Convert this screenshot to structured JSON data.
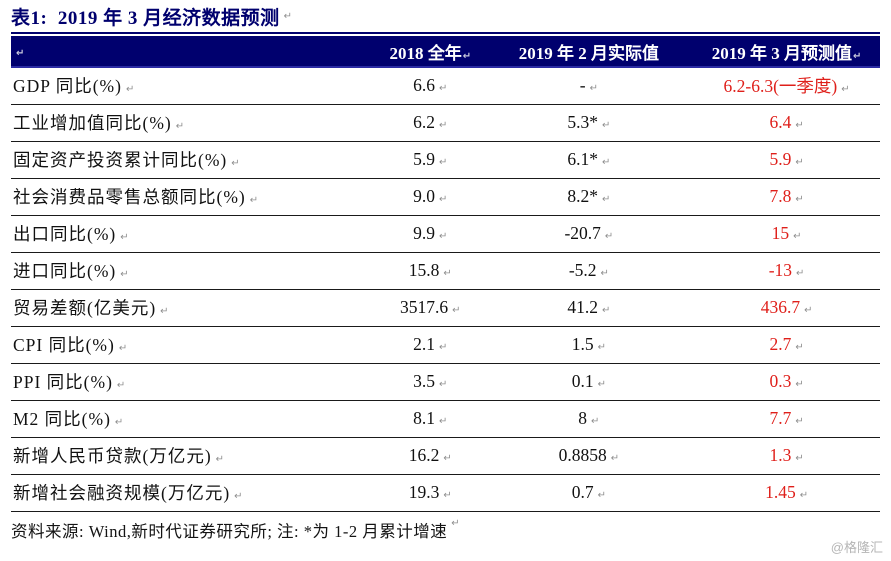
{
  "title": "表1:  2019 年 3 月经济数据预测",
  "paragraph_mark": "↵",
  "header": {
    "indicator": "",
    "y2018": "2018 全年",
    "feb2019": "2019 年 2 月实际值",
    "mar2019": "2019 年 3 月预测值"
  },
  "rows": [
    {
      "label": "GDP 同比(%)",
      "y2018": "6.6",
      "feb2019": "-",
      "mar2019": "6.2-6.3(一季度)"
    },
    {
      "label": "工业增加值同比(%)",
      "y2018": "6.2",
      "feb2019": "5.3*",
      "mar2019": "6.4"
    },
    {
      "label": "固定资产投资累计同比(%)",
      "y2018": "5.9",
      "feb2019": "6.1*",
      "mar2019": "5.9"
    },
    {
      "label": "社会消费品零售总额同比(%)",
      "y2018": "9.0",
      "feb2019": "8.2*",
      "mar2019": "7.8"
    },
    {
      "label": "出口同比(%)",
      "y2018": "9.9",
      "feb2019": "-20.7",
      "mar2019": "15"
    },
    {
      "label": "进口同比(%)",
      "y2018": "15.8",
      "feb2019": "-5.2",
      "mar2019": "-13"
    },
    {
      "label": "贸易差额(亿美元)",
      "y2018": "3517.6",
      "feb2019": "41.2",
      "mar2019": "436.7"
    },
    {
      "label": "CPI 同比(%)",
      "y2018": "2.1",
      "feb2019": "1.5",
      "mar2019": "2.7"
    },
    {
      "label": "PPI 同比(%)",
      "y2018": "3.5",
      "feb2019": "0.1",
      "mar2019": "0.3"
    },
    {
      "label": "M2 同比(%)",
      "y2018": "8.1",
      "feb2019": "8",
      "mar2019": "7.7"
    },
    {
      "label": "新增人民币贷款(万亿元)",
      "y2018": "16.2",
      "feb2019": "0.8858",
      "mar2019": "1.3"
    },
    {
      "label": "新增社会融资规模(万亿元)",
      "y2018": "19.3",
      "feb2019": "0.7",
      "mar2019": "1.45"
    }
  ],
  "footer": "资料来源: Wind,新时代证券研究所; 注: *为 1-2 月累计增速",
  "watermark": "@格隆汇",
  "colors": {
    "navy": "#00006e",
    "navy_light": "#2b2ba3",
    "forecast_red": "#df1f1a",
    "mark_gray": "#8f8f8f",
    "watermark_gray": "#b5b5b5"
  }
}
